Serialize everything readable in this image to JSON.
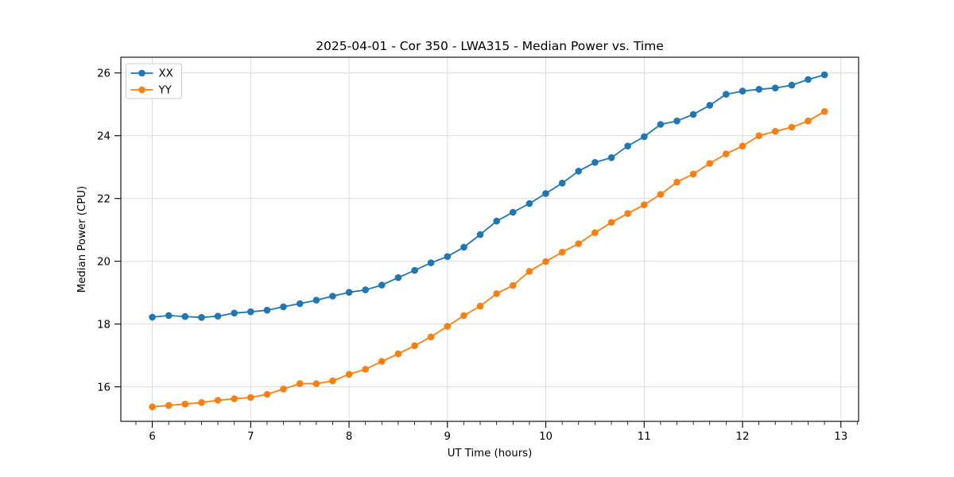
{
  "chart_data": {
    "type": "line",
    "title": "2025-04-01 - Cor 350 - LWA315 - Median Power vs. Time",
    "xlabel": "UT Time (hours)",
    "ylabel": "Median Power (CPU)",
    "xlim": [
      5.68,
      13.18
    ],
    "ylim": [
      14.9,
      26.5
    ],
    "xticks": [
      6,
      7,
      8,
      9,
      10,
      11,
      12,
      13
    ],
    "yticks": [
      16,
      18,
      20,
      22,
      24,
      26
    ],
    "x_minor_step_hours": 0.166667,
    "grid": true,
    "legend_position": "upper-left",
    "marker": "circle",
    "x": [
      6.0,
      6.167,
      6.333,
      6.5,
      6.667,
      6.833,
      7.0,
      7.167,
      7.333,
      7.5,
      7.667,
      7.833,
      8.0,
      8.167,
      8.333,
      8.5,
      8.667,
      8.833,
      9.0,
      9.167,
      9.333,
      9.5,
      9.667,
      9.833,
      10.0,
      10.167,
      10.333,
      10.5,
      10.667,
      10.833,
      11.0,
      11.167,
      11.333,
      11.5,
      11.667,
      11.833,
      12.0,
      12.167,
      12.333,
      12.5,
      12.667,
      12.833
    ],
    "series": [
      {
        "name": "XX",
        "color": "#1f77b4",
        "values": [
          18.22,
          18.27,
          18.24,
          18.21,
          18.25,
          18.35,
          18.39,
          18.44,
          18.55,
          18.65,
          18.76,
          18.89,
          19.01,
          19.09,
          19.24,
          19.48,
          19.71,
          19.95,
          20.15,
          20.45,
          20.85,
          21.28,
          21.56,
          21.84,
          22.16,
          22.49,
          22.87,
          23.15,
          23.3,
          23.67,
          23.97,
          24.36,
          24.47,
          24.68,
          24.97,
          25.32,
          25.42,
          25.48,
          25.52,
          25.61,
          25.79,
          25.94
        ]
      },
      {
        "name": "YY",
        "color": "#ff7f0e",
        "values": [
          15.36,
          15.41,
          15.45,
          15.5,
          15.57,
          15.62,
          15.66,
          15.76,
          15.93,
          16.1,
          16.1,
          16.19,
          16.4,
          16.56,
          16.81,
          17.05,
          17.31,
          17.59,
          17.93,
          18.27,
          18.57,
          18.97,
          19.23,
          19.68,
          19.99,
          20.29,
          20.56,
          20.91,
          21.24,
          21.52,
          21.8,
          22.13,
          22.52,
          22.78,
          23.12,
          23.42,
          23.67,
          24.0,
          24.14,
          24.27,
          24.47,
          24.77
        ]
      }
    ],
    "style": {
      "grid_color": "#d9d9d9",
      "spine_color": "#000000",
      "background": "#ffffff",
      "legend_border": "#cccccc"
    }
  }
}
